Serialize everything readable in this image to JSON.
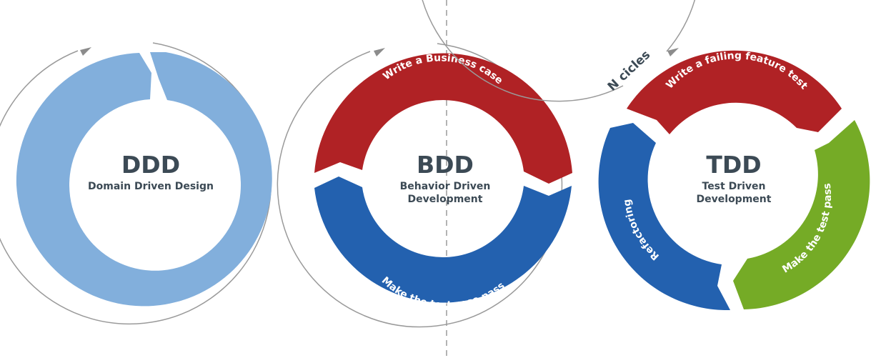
{
  "colors": {
    "light_blue": "#82afdc",
    "red": "#b02225",
    "blue": "#2361af",
    "green": "#75ab26",
    "outline": "#9a9a9a",
    "text": "#3c4a55",
    "divider": "#9a9a9a"
  },
  "ddd": {
    "title": "DDD",
    "subtitle": "Domain Driven Design"
  },
  "bdd": {
    "title": "BDD",
    "subtitle_line1": "Behavior Driven",
    "subtitle_line2": "Development",
    "top_label": "Write a Business case",
    "bottom_label": "Make the test case pass"
  },
  "tdd": {
    "title": "TDD",
    "subtitle_line1": "Test Driven",
    "subtitle_line2": "Development",
    "top_label": "Write a failing feature test",
    "right_label": "Make the test pass",
    "left_label": "Refactoring",
    "cycles_note": "N cicles"
  }
}
